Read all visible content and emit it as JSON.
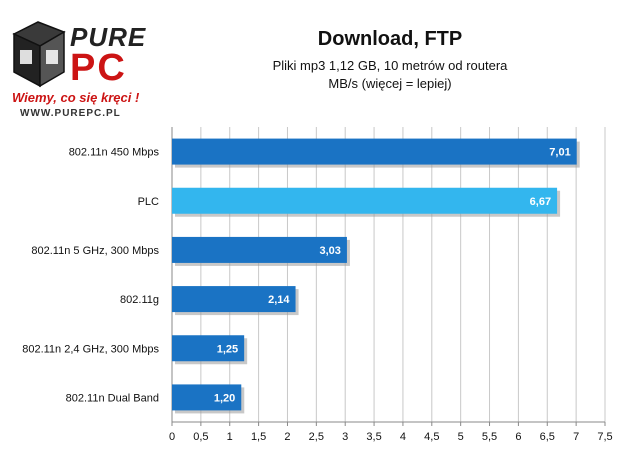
{
  "branding": {
    "logo_text": "PURE PC",
    "slogan": "Wiemy, co się kręci !",
    "url": "WWW.PUREPC.PL"
  },
  "chart_data": {
    "type": "bar",
    "orientation": "horizontal",
    "title": "Download, FTP",
    "subtitle": [
      "Pliki mp3 1,12 GB, 10 metrów od routera",
      "MB/s (więcej = lepiej)"
    ],
    "categories": [
      "802.11n 450 Mbps",
      "PLC",
      "802.11n 5 GHz, 300 Mbps",
      "802.11g",
      "802.11n 2,4 GHz, 300 Mbps",
      "802.11n Dual Band"
    ],
    "values": [
      7.01,
      6.67,
      3.03,
      2.14,
      1.25,
      1.2
    ],
    "value_labels": [
      "7,01",
      "6,67",
      "3,03",
      "2,14",
      "1,25",
      "1,20"
    ],
    "bar_colors": [
      "#1a73c4",
      "#33b6ee",
      "#1a73c4",
      "#1a73c4",
      "#1a73c4",
      "#1a73c4"
    ],
    "xlim": [
      0,
      7.5
    ],
    "xticks": [
      "0",
      "0,5",
      "1",
      "1,5",
      "2",
      "2,5",
      "3",
      "3,5",
      "4",
      "4,5",
      "5",
      "5,5",
      "6",
      "6,5",
      "7",
      "7,5"
    ],
    "grid": true,
    "legend": "none",
    "colors": {
      "grid": "#c8c8c8",
      "axis": "#888888",
      "label": "#111111",
      "value_text": "#ffffff"
    }
  }
}
